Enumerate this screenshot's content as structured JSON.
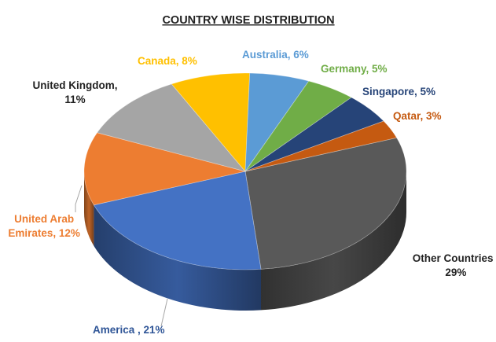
{
  "chart_data": {
    "type": "pie",
    "title": "COUNTRY WISE DISTRIBUTION",
    "slices": [
      {
        "name": "Other Countries",
        "value": 29,
        "label_lines": [
          "Other Countries ,",
          "29%"
        ],
        "color": "#595959",
        "label_color": "#222222"
      },
      {
        "name": "America",
        "value": 21,
        "label_lines": [
          "America , 21%"
        ],
        "color": "#4472c4",
        "label_color": "#2f5597"
      },
      {
        "name": "United Arab Emirates",
        "value": 12,
        "label_lines": [
          "United Arab",
          "Emirates, 12%"
        ],
        "color": "#ed7d31",
        "label_color": "#ed7d31"
      },
      {
        "name": "United Kingdom",
        "value": 11,
        "label_lines": [
          "United Kingdom,",
          "11%"
        ],
        "color": "#a5a5a5",
        "label_color": "#222222"
      },
      {
        "name": "Canada",
        "value": 8,
        "label_lines": [
          "Canada, 8%"
        ],
        "color": "#ffc000",
        "label_color": "#ffc000"
      },
      {
        "name": "Australia",
        "value": 6,
        "label_lines": [
          "Australia, 6%"
        ],
        "color": "#5b9bd5",
        "label_color": "#5b9bd5"
      },
      {
        "name": "Germany",
        "value": 5,
        "label_lines": [
          "Germany, 5%"
        ],
        "color": "#70ad47",
        "label_color": "#70ad47"
      },
      {
        "name": "Singapore",
        "value": 5,
        "label_lines": [
          "Singapore, 5%"
        ],
        "color": "#264478",
        "label_color": "#264478"
      },
      {
        "name": "Qatar",
        "value": 3,
        "label_lines": [
          "Qatar, 3%"
        ],
        "color": "#c55a11",
        "label_color": "#c55a11"
      }
    ],
    "legend": "none",
    "style": "3d-pie"
  }
}
